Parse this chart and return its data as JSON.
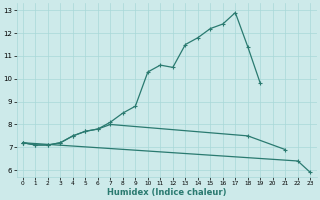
{
  "xlabel": "Humidex (Indice chaleur)",
  "line1_x": [
    0,
    1,
    2,
    3,
    4,
    5,
    6,
    7,
    8,
    9,
    10,
    11,
    12,
    13,
    14,
    15,
    16,
    17,
    18,
    19
  ],
  "line1_y": [
    7.2,
    7.1,
    7.1,
    7.2,
    7.5,
    7.7,
    7.8,
    8.1,
    8.5,
    8.8,
    10.3,
    10.6,
    10.5,
    11.5,
    11.8,
    12.2,
    12.4,
    12.9,
    11.4,
    9.8
  ],
  "line2_x": [
    0,
    1,
    2,
    3,
    4,
    5,
    6,
    7,
    18,
    21
  ],
  "line2_y": [
    7.2,
    7.1,
    7.1,
    7.2,
    7.5,
    7.7,
    7.8,
    8.0,
    7.5,
    6.9
  ],
  "line3_x": [
    0,
    22,
    23
  ],
  "line3_y": [
    7.2,
    6.4,
    5.9
  ],
  "line_color": "#2a7a70",
  "bg_color": "#cdeaea",
  "grid_color": "#a8d8d8",
  "ylim": [
    5.7,
    13.3
  ],
  "xlim": [
    -0.5,
    23.5
  ],
  "yticks": [
    6,
    7,
    8,
    9,
    10,
    11,
    12,
    13
  ],
  "xticks": [
    0,
    1,
    2,
    3,
    4,
    5,
    6,
    7,
    8,
    9,
    10,
    11,
    12,
    13,
    14,
    15,
    16,
    17,
    18,
    19,
    20,
    21,
    22,
    23
  ],
  "xlabel_fontsize": 6,
  "tick_fontsize": 5
}
